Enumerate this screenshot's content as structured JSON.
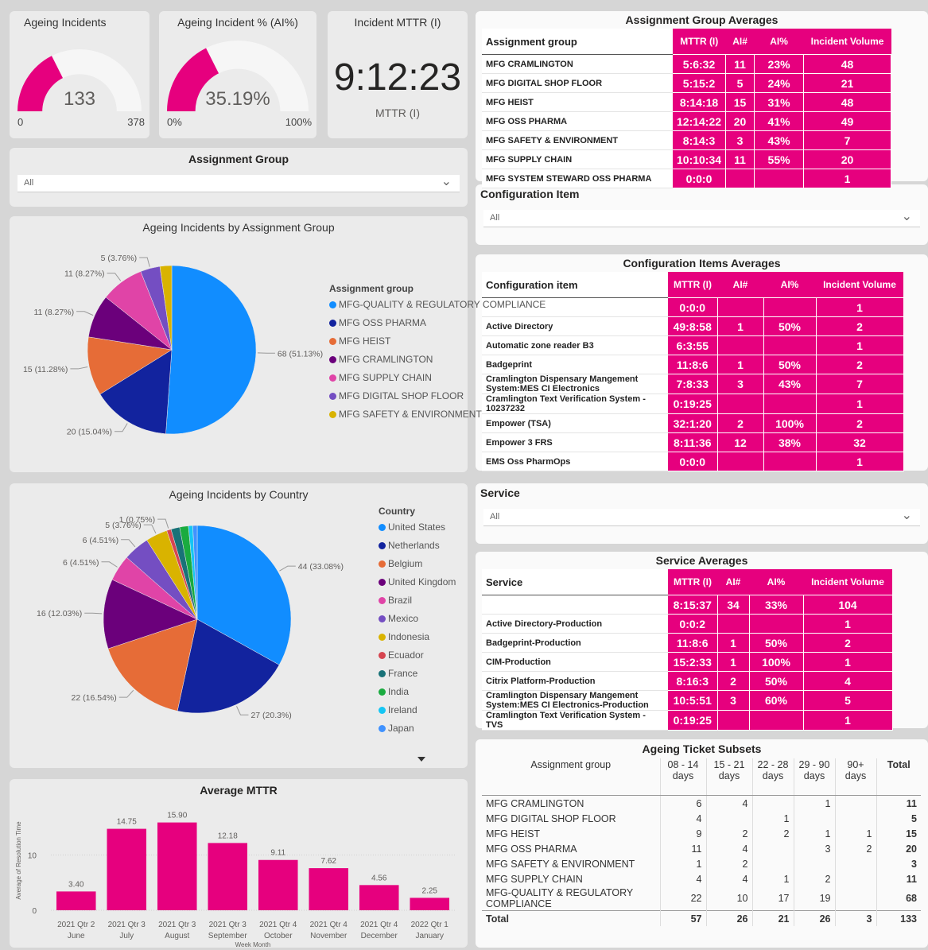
{
  "gauges": [
    {
      "title": "Ageing Incidents",
      "value": 133,
      "min": 0,
      "max": 378
    },
    {
      "title": "Ageing Incident % (AI%)",
      "value": 35.19,
      "value_label": "35.19%",
      "min": 0,
      "min_label": "0%",
      "max": 100,
      "max_label": "100%"
    }
  ],
  "card": {
    "title": "Incident MTTR (I)",
    "value": "9:12:23",
    "label": "MTTR (I)"
  },
  "slicers": [
    {
      "title": "Assignment Group",
      "value": "All"
    },
    {
      "title": "Configuration Item",
      "value": "All"
    },
    {
      "title": "Service",
      "value": "All"
    }
  ],
  "tables": [
    {
      "title": "Assignment Group Averages",
      "columns": [
        "Assignment group",
        "MTTR (I)",
        "AI#",
        "AI%",
        "Incident Volume"
      ],
      "rows": [
        [
          "MFG CRAMLINGTON",
          "5:6:32",
          "11",
          "23%",
          "48"
        ],
        [
          "MFG DIGITAL SHOP FLOOR",
          "5:15:2",
          "5",
          "24%",
          "21"
        ],
        [
          "MFG HEIST",
          "8:14:18",
          "15",
          "31%",
          "48"
        ],
        [
          "MFG OSS PHARMA",
          "12:14:22",
          "20",
          "41%",
          "49"
        ],
        [
          "MFG SAFETY & ENVIRONMENT",
          "8:14:3",
          "3",
          "43%",
          "7"
        ],
        [
          "MFG SUPPLY CHAIN",
          "10:10:34",
          "11",
          "55%",
          "20"
        ],
        [
          "MFG SYSTEM STEWARD OSS PHARMA",
          "0:0:0",
          null,
          null,
          "1"
        ]
      ]
    },
    {
      "title": "Configuration Items Averages",
      "columns": [
        "Configuration item",
        "MTTR (I)",
        "AI#",
        "AI%",
        "Incident Volume"
      ],
      "rows": [
        [
          null,
          "0:0:0",
          null,
          null,
          "1"
        ],
        [
          "Active Directory",
          "49:8:58",
          "1",
          "50%",
          "2"
        ],
        [
          "Automatic zone reader B3",
          "6:3:55",
          null,
          null,
          "1"
        ],
        [
          "Badgeprint",
          "11:8:6",
          "1",
          "50%",
          "2"
        ],
        [
          "Cramlington Dispensary Mangement System:MES CI Electronics",
          "7:8:33",
          "3",
          "43%",
          "7"
        ],
        [
          "Cramlington Text Verification System - 10237232",
          "0:19:25",
          null,
          null,
          "1"
        ],
        [
          "Empower (TSA)",
          "32:1:20",
          "2",
          "100%",
          "2"
        ],
        [
          "Empower 3 FRS",
          "8:11:36",
          "12",
          "38%",
          "32"
        ],
        [
          "EMS Oss PharmOps",
          "0:0:0",
          null,
          null,
          "1"
        ]
      ]
    },
    {
      "title": "Service Averages",
      "columns": [
        "Service",
        "MTTR (I)",
        "AI#",
        "AI%",
        "Incident Volume"
      ],
      "rows": [
        [
          null,
          "8:15:37",
          "34",
          "33%",
          "104"
        ],
        [
          "Active Directory-Production",
          "0:0:2",
          null,
          null,
          "1"
        ],
        [
          "Badgeprint-Production",
          "11:8:6",
          "1",
          "50%",
          "2"
        ],
        [
          "CIM-Production",
          "15:2:33",
          "1",
          "100%",
          "1"
        ],
        [
          "Citrix Platform-Production",
          "8:16:3",
          "2",
          "50%",
          "4"
        ],
        [
          "Cramlington Dispensary Mangement System:MES CI Electronics-Production",
          "10:5:51",
          "3",
          "60%",
          "5"
        ],
        [
          "Cramlington Text Verification System - TVS",
          "0:19:25",
          null,
          null,
          "1"
        ]
      ]
    }
  ],
  "matrix": {
    "title": "Ageing Ticket Subsets",
    "columns": [
      "Assignment group",
      "08 - 14 days",
      "15 - 21 days",
      "22 - 28 days",
      "29 - 90 days",
      "90+ days",
      "Total"
    ],
    "rows": [
      [
        "MFG CRAMLINGTON",
        "6",
        "4",
        null,
        "1",
        null,
        "11"
      ],
      [
        "MFG DIGITAL SHOP FLOOR",
        "4",
        null,
        "1",
        null,
        null,
        "5"
      ],
      [
        "MFG HEIST",
        "9",
        "2",
        "2",
        "1",
        "1",
        "15"
      ],
      [
        "MFG OSS PHARMA",
        "11",
        "4",
        null,
        "3",
        "2",
        "20"
      ],
      [
        "MFG SAFETY & ENVIRONMENT",
        "1",
        "2",
        null,
        null,
        null,
        "3"
      ],
      [
        "MFG SUPPLY CHAIN",
        "4",
        "4",
        "1",
        "2",
        null,
        "11"
      ],
      [
        "MFG-QUALITY & REGULATORY COMPLIANCE",
        "22",
        "10",
        "17",
        "19",
        null,
        "68"
      ],
      [
        "Total",
        "57",
        "26",
        "21",
        "26",
        "3",
        "133"
      ]
    ]
  },
  "pies": [
    {
      "title": "Ageing Incidents by Assignment Group",
      "legend_title": "Assignment group",
      "slices": [
        {
          "name": "MFG-QUALITY & REGULATORY COMPLIANCE",
          "value": 68,
          "value_label": "68 (51.13%)",
          "color": "#118DFF"
        },
        {
          "name": "MFG OSS PHARMA",
          "value": 20,
          "value_label": "20 (15.04%)",
          "color": "#12239E"
        },
        {
          "name": "MFG HEIST",
          "value": 15,
          "value_label": "15 (11.28%)",
          "color": "#E66C37"
        },
        {
          "name": "MFG CRAMLINGTON",
          "value": 11,
          "value_label": "11 (8.27%)",
          "color": "#6B007B"
        },
        {
          "name": "MFG SUPPLY CHAIN",
          "value": 11,
          "value_label": "11 (8.27%)",
          "color": "#E044A7"
        },
        {
          "name": "MFG DIGITAL SHOP FLOOR",
          "value": 5,
          "value_label": "5 (3.76%)",
          "color": "#744EC2"
        },
        {
          "name": "MFG SAFETY & ENVIRONMENT",
          "value": 3,
          "value_label": null,
          "color": "#D9B300"
        }
      ]
    },
    {
      "title": "Ageing Incidents by Country",
      "legend_title": "Country",
      "slices": [
        {
          "name": "United States",
          "value": 44,
          "value_label": "44 (33.08%)",
          "color": "#118DFF"
        },
        {
          "name": "Netherlands",
          "value": 27,
          "value_label": "27 (20.3%)",
          "color": "#12239E"
        },
        {
          "name": "Belgium",
          "value": 22,
          "value_label": "22 (16.54%)",
          "color": "#E66C37"
        },
        {
          "name": "United Kingdom",
          "value": 16,
          "value_label": "16 (12.03%)",
          "color": "#6B007B"
        },
        {
          "name": "Brazil",
          "value": 6,
          "value_label": "6 (4.51%)",
          "color": "#E044A7"
        },
        {
          "name": "Mexico",
          "value": 6,
          "value_label": "6 (4.51%)",
          "color": "#744EC2"
        },
        {
          "name": "Indonesia",
          "value": 5,
          "value_label": "5 (3.76%)",
          "color": "#D9B300"
        },
        {
          "name": "Ecuador",
          "value": 1,
          "value_label": "1 (0.75%)",
          "color": "#D64550"
        },
        {
          "name": "France",
          "value": 2,
          "value_label": null,
          "color": "#197278"
        },
        {
          "name": "India",
          "value": 2,
          "value_label": null,
          "color": "#1AAB40"
        },
        {
          "name": "Ireland",
          "value": 1,
          "value_label": null,
          "color": "#15C6F4"
        },
        {
          "name": "Japan",
          "value": 1,
          "value_label": null,
          "color": "#4092FF"
        }
      ]
    }
  ],
  "bar": {
    "title": "Average MTTR",
    "y_label": "Average of Resolution Time",
    "x_label": "Week Month",
    "categories": [
      [
        "2021 Qtr 2",
        "June"
      ],
      [
        "2021 Qtr 3",
        "July"
      ],
      [
        "2021 Qtr 3",
        "August"
      ],
      [
        "2021 Qtr 3",
        "September"
      ],
      [
        "2021 Qtr 4",
        "October"
      ],
      [
        "2021 Qtr 4",
        "November"
      ],
      [
        "2021 Qtr 4",
        "December"
      ],
      [
        "2022 Qtr 1",
        "January"
      ]
    ],
    "values": [
      3.4,
      14.75,
      15.9,
      12.18,
      9.11,
      7.62,
      4.56,
      2.25
    ],
    "value_labels": [
      "3.40",
      "14.75",
      "15.90",
      "12.18",
      "9.11",
      "7.62",
      "4.56",
      "2.25"
    ],
    "color": "#E6007E",
    "ylim": [
      0,
      18
    ],
    "yticks": [
      0,
      10
    ]
  }
}
